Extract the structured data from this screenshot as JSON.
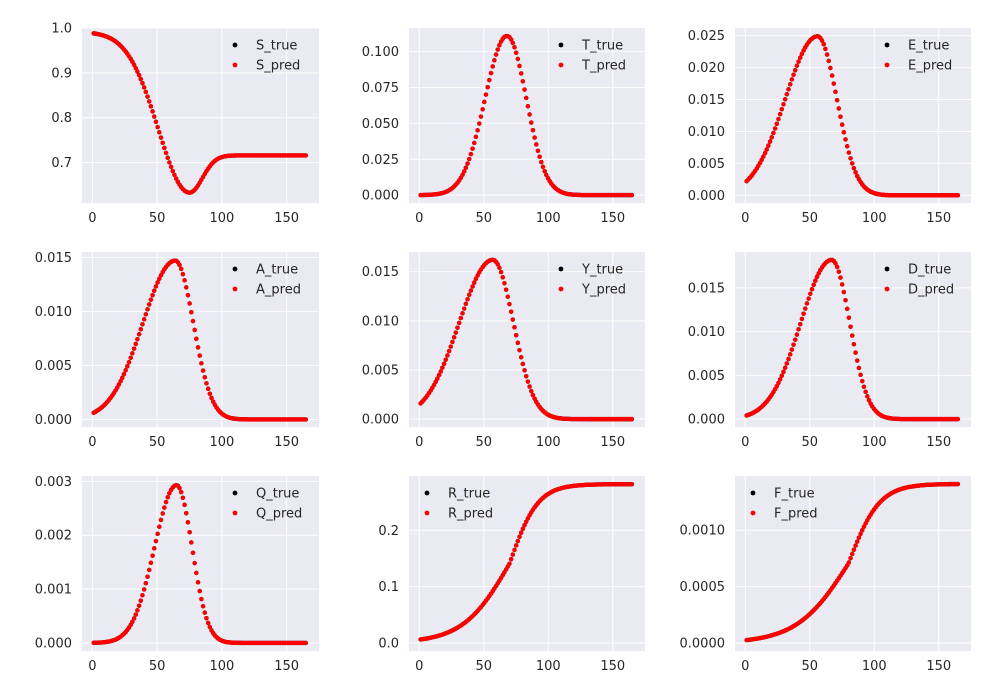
{
  "figure": {
    "background": "#ffffff",
    "axes_facecolor": "#eaeaf2",
    "grid_color": "#ffffff",
    "true_color": "#000000",
    "pred_color": "#ff0000"
  },
  "chart_data": [
    {
      "type": "scatter",
      "title": "",
      "xlabel": "",
      "ylabel": "",
      "xlim": [
        -8,
        175
      ],
      "ylim": [
        0.61,
        1.0
      ],
      "xticks": [
        0,
        50,
        100,
        150
      ],
      "xtick_labels": [
        "0",
        "50",
        "100",
        "150"
      ],
      "yticks": [
        0.7,
        0.8,
        0.9,
        1.0
      ],
      "ytick_labels": [
        "0.7",
        "0.8",
        "0.9",
        "1.0"
      ],
      "grid": true,
      "legend_position": "top-right",
      "legend": [
        "S_true",
        "S_pred"
      ],
      "curve": {
        "shape": "dip",
        "x_range": [
          1,
          166
        ],
        "y0": 0.988,
        "y_min": 0.633,
        "x_min": 75,
        "y_end": 0.716,
        "w1": 24,
        "w2": 10
      },
      "series": [
        {
          "name": "S_true",
          "color": "#000000"
        },
        {
          "name": "S_pred",
          "color": "#ff0000"
        }
      ]
    },
    {
      "type": "scatter",
      "title": "",
      "xlabel": "",
      "ylabel": "",
      "xlim": [
        -8,
        175
      ],
      "ylim": [
        -0.0055,
        0.1165
      ],
      "xticks": [
        0,
        50,
        100,
        150
      ],
      "xtick_labels": [
        "0",
        "50",
        "100",
        "150"
      ],
      "yticks": [
        0.0,
        0.025,
        0.05,
        0.075,
        0.1
      ],
      "ytick_labels": [
        "0.000",
        "0.025",
        "0.050",
        "0.075",
        "0.100"
      ],
      "grid": true,
      "legend_position": "top-right",
      "legend": [
        "T_true",
        "T_pred"
      ],
      "curve": {
        "shape": "peak",
        "x_range": [
          1,
          166
        ],
        "y_peak": 0.111,
        "x_peak": 68,
        "w_left": 17,
        "w_right": 15
      },
      "series": [
        {
          "name": "T_true",
          "color": "#000000"
        },
        {
          "name": "T_pred",
          "color": "#ff0000"
        }
      ]
    },
    {
      "type": "scatter",
      "title": "",
      "xlabel": "",
      "ylabel": "",
      "xlim": [
        -8,
        175
      ],
      "ylim": [
        -0.0012,
        0.0262
      ],
      "xticks": [
        0,
        50,
        100,
        150
      ],
      "xtick_labels": [
        "0",
        "50",
        "100",
        "150"
      ],
      "yticks": [
        0.0,
        0.005,
        0.01,
        0.015,
        0.02,
        0.025
      ],
      "ytick_labels": [
        "0.000",
        "0.005",
        "0.010",
        "0.015",
        "0.020",
        "0.025"
      ],
      "grid": true,
      "legend_position": "top-right",
      "legend": [
        "E_true",
        "E_pred"
      ],
      "curve": {
        "shape": "peak",
        "x_range": [
          1,
          166
        ],
        "y_peak": 0.0249,
        "x_peak": 56,
        "w_left": 25,
        "w_right": 15
      },
      "series": [
        {
          "name": "E_true",
          "color": "#000000"
        },
        {
          "name": "E_pred",
          "color": "#ff0000"
        }
      ]
    },
    {
      "type": "scatter",
      "title": "",
      "xlabel": "",
      "ylabel": "",
      "xlim": [
        -8,
        175
      ],
      "ylim": [
        -0.0007,
        0.0155
      ],
      "xticks": [
        0,
        50,
        100,
        150
      ],
      "xtick_labels": [
        "0",
        "50",
        "100",
        "150"
      ],
      "yticks": [
        0.0,
        0.005,
        0.01,
        0.015
      ],
      "ytick_labels": [
        "0.000",
        "0.005",
        "0.010",
        "0.015"
      ],
      "grid": true,
      "legend_position": "top-right",
      "legend": [
        "A_true",
        "A_pred"
      ],
      "curve": {
        "shape": "peak",
        "x_range": [
          1,
          166
        ],
        "y_peak": 0.0147,
        "x_peak": 64,
        "w_left": 25,
        "w_right": 14
      },
      "series": [
        {
          "name": "A_true",
          "color": "#000000"
        },
        {
          "name": "A_pred",
          "color": "#ff0000"
        }
      ]
    },
    {
      "type": "scatter",
      "title": "",
      "xlabel": "",
      "ylabel": "",
      "xlim": [
        -8,
        175
      ],
      "ylim": [
        -0.0008,
        0.017
      ],
      "xticks": [
        0,
        50,
        100,
        150
      ],
      "xtick_labels": [
        "0",
        "50",
        "100",
        "150"
      ],
      "yticks": [
        0.0,
        0.005,
        0.01,
        0.015
      ],
      "ytick_labels": [
        "0.000",
        "0.005",
        "0.010",
        "0.015"
      ],
      "grid": true,
      "legend_position": "top-right",
      "legend": [
        "Y_true",
        "Y_pred"
      ],
      "curve": {
        "shape": "peak",
        "x_range": [
          1,
          166
        ],
        "y_peak": 0.0162,
        "x_peak": 57,
        "w_left": 26,
        "w_right": 16
      },
      "series": [
        {
          "name": "Y_true",
          "color": "#000000"
        },
        {
          "name": "Y_pred",
          "color": "#ff0000"
        }
      ]
    },
    {
      "type": "scatter",
      "title": "",
      "xlabel": "",
      "ylabel": "",
      "xlim": [
        -8,
        175
      ],
      "ylim": [
        -0.0009,
        0.0191
      ],
      "xticks": [
        0,
        50,
        100,
        150
      ],
      "xtick_labels": [
        "0",
        "50",
        "100",
        "150"
      ],
      "yticks": [
        0.0,
        0.005,
        0.01,
        0.015
      ],
      "ytick_labels": [
        "0.000",
        "0.005",
        "0.010",
        "0.015"
      ],
      "grid": true,
      "legend_position": "top-right",
      "legend": [
        "D_true",
        "D_pred"
      ],
      "curve": {
        "shape": "peak",
        "x_range": [
          1,
          166
        ],
        "y_peak": 0.0182,
        "x_peak": 67,
        "w_left": 24,
        "w_right": 14
      },
      "series": [
        {
          "name": "D_true",
          "color": "#000000"
        },
        {
          "name": "D_pred",
          "color": "#ff0000"
        }
      ]
    },
    {
      "type": "scatter",
      "title": "",
      "xlabel": "",
      "ylabel": "",
      "xlim": [
        -8,
        175
      ],
      "ylim": [
        -0.00015,
        0.0031
      ],
      "xticks": [
        0,
        50,
        100,
        150
      ],
      "xtick_labels": [
        "0",
        "50",
        "100",
        "150"
      ],
      "yticks": [
        0.0,
        0.001,
        0.002,
        0.003
      ],
      "ytick_labels": [
        "0.000",
        "0.001",
        "0.002",
        "0.003"
      ],
      "grid": true,
      "legend_position": "top-right",
      "legend": [
        "Q_true",
        "Q_pred"
      ],
      "curve": {
        "shape": "peak",
        "x_range": [
          1,
          166
        ],
        "y_peak": 0.00293,
        "x_peak": 65,
        "w_left": 17,
        "w_right": 12
      },
      "series": [
        {
          "name": "Q_true",
          "color": "#000000"
        },
        {
          "name": "Q_pred",
          "color": "#ff0000"
        }
      ]
    },
    {
      "type": "scatter",
      "title": "",
      "xlabel": "",
      "ylabel": "",
      "xlim": [
        -8,
        175
      ],
      "ylim": [
        -0.0145,
        0.2965
      ],
      "xticks": [
        0,
        50,
        100,
        150
      ],
      "xtick_labels": [
        "0",
        "50",
        "100",
        "150"
      ],
      "yticks": [
        0.0,
        0.1,
        0.2
      ],
      "ytick_labels": [
        "0.0",
        "0.1",
        "0.2"
      ],
      "grid": true,
      "legend_position": "top-left",
      "legend": [
        "R_true",
        "R_pred"
      ],
      "curve": {
        "shape": "sigmoid",
        "x_range": [
          1,
          166
        ],
        "y_max": 0.282,
        "x_mid": 70,
        "w_left": 18,
        "w_right": 11
      },
      "series": [
        {
          "name": "R_true",
          "color": "#000000"
        },
        {
          "name": "R_pred",
          "color": "#ff0000"
        }
      ]
    },
    {
      "type": "scatter",
      "title": "",
      "xlabel": "",
      "ylabel": "",
      "xlim": [
        -8,
        175
      ],
      "ylim": [
        -7e-05,
        0.00148
      ],
      "xticks": [
        0,
        50,
        100,
        150
      ],
      "xtick_labels": [
        "0",
        "50",
        "100",
        "150"
      ],
      "yticks": [
        0.0,
        0.0005,
        0.001
      ],
      "ytick_labels": [
        "0.0000",
        "0.0005",
        "0.0010"
      ],
      "grid": true,
      "legend_position": "top-left",
      "legend": [
        "F_true",
        "F_pred"
      ],
      "curve": {
        "shape": "sigmoid",
        "x_range": [
          1,
          166
        ],
        "y_max": 0.00141,
        "x_mid": 80,
        "w_left": 20,
        "w_right": 12
      },
      "series": [
        {
          "name": "F_true",
          "color": "#000000"
        },
        {
          "name": "F_pred",
          "color": "#ff0000"
        }
      ]
    }
  ]
}
